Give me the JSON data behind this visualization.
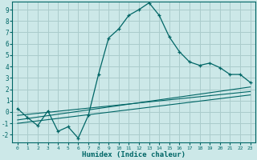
{
  "title": "",
  "xlabel": "Humidex (Indice chaleur)",
  "bg_color": "#cce8e8",
  "grid_color": "#aacccc",
  "line_color": "#006666",
  "xlim": [
    -0.5,
    23.5
  ],
  "ylim": [
    -2.7,
    9.7
  ],
  "xticks": [
    0,
    1,
    2,
    3,
    4,
    5,
    6,
    7,
    8,
    9,
    10,
    11,
    12,
    13,
    14,
    15,
    16,
    17,
    18,
    19,
    20,
    21,
    22,
    23
  ],
  "yticks": [
    -2,
    -1,
    0,
    1,
    2,
    3,
    4,
    5,
    6,
    7,
    8,
    9
  ],
  "main_x": [
    0,
    1,
    2,
    3,
    4,
    5,
    6,
    7,
    8,
    9,
    10,
    11,
    12,
    13,
    14,
    15,
    16,
    17,
    18,
    19,
    20,
    21,
    22,
    23
  ],
  "main_y": [
    0.3,
    -0.5,
    -1.2,
    0.1,
    -1.7,
    -1.3,
    -2.3,
    -0.3,
    3.3,
    6.5,
    7.3,
    8.5,
    9.0,
    9.6,
    8.5,
    6.6,
    5.3,
    4.4,
    4.1,
    4.3,
    3.9,
    3.3,
    3.3,
    2.6
  ],
  "trend1_x": [
    0,
    23
  ],
  "trend1_y": [
    -0.3,
    1.8
  ],
  "trend2_x": [
    0,
    23
  ],
  "trend2_y": [
    -0.7,
    2.2
  ],
  "trend3_x": [
    0,
    23
  ],
  "trend3_y": [
    -1.0,
    1.5
  ]
}
